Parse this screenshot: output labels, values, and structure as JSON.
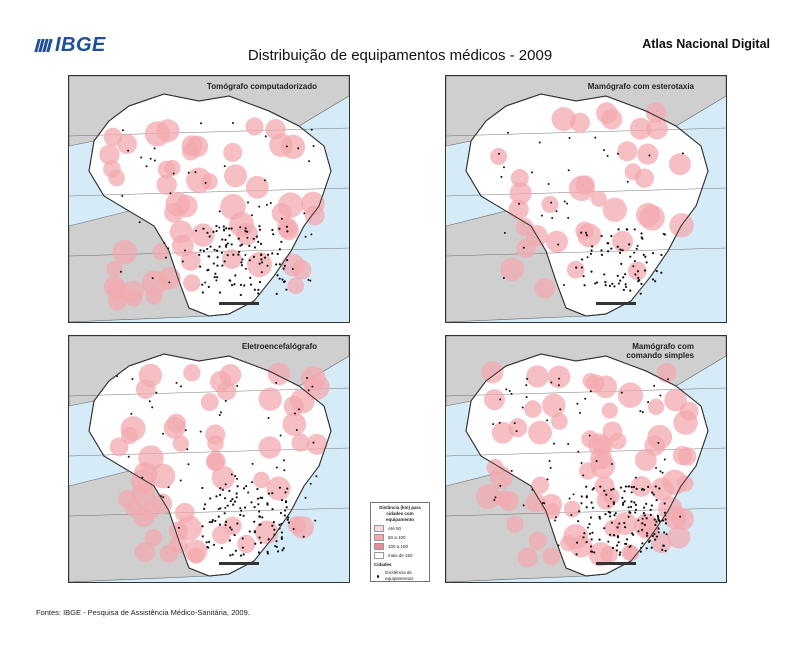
{
  "header": {
    "logo_text": "IBGE",
    "atlas_label": "Atlas Nacional Digital",
    "title": "Distribuição de equipamentos médicos - 2009"
  },
  "maps": [
    {
      "title": "Tomógrafo computadorizado",
      "coverage": "high"
    },
    {
      "title": "Mamógrafo com esterotaxia",
      "coverage": "medium"
    },
    {
      "title": "Eletroencefalógrafo",
      "coverage": "high"
    },
    {
      "title": "Mamógrafo com comando simples",
      "coverage": "very-high"
    }
  ],
  "legend": {
    "heading": "Distância (km) para cidades com equipamento",
    "classes": [
      {
        "label": "Até 50",
        "color": "#fadadd"
      },
      {
        "label": "50 a 100",
        "color": "#f3a9b0"
      },
      {
        "label": "100 a 150",
        "color": "#e88e97"
      },
      {
        "label": "mais de 150",
        "color": "#ffffff"
      }
    ],
    "cities_heading": "Cidades",
    "cities_item": "Existência de equipamentos"
  },
  "source": "Fontes: IBGE - Pesquisa de Assistência Médico-Sanitária, 2009.",
  "colors": {
    "ocean": "#d5ecf8",
    "land": "#cfcfcf",
    "brazil": "#ffffff",
    "buffer": "#f3a9b0",
    "points": "#111111",
    "logo": "#1f4e9a"
  }
}
